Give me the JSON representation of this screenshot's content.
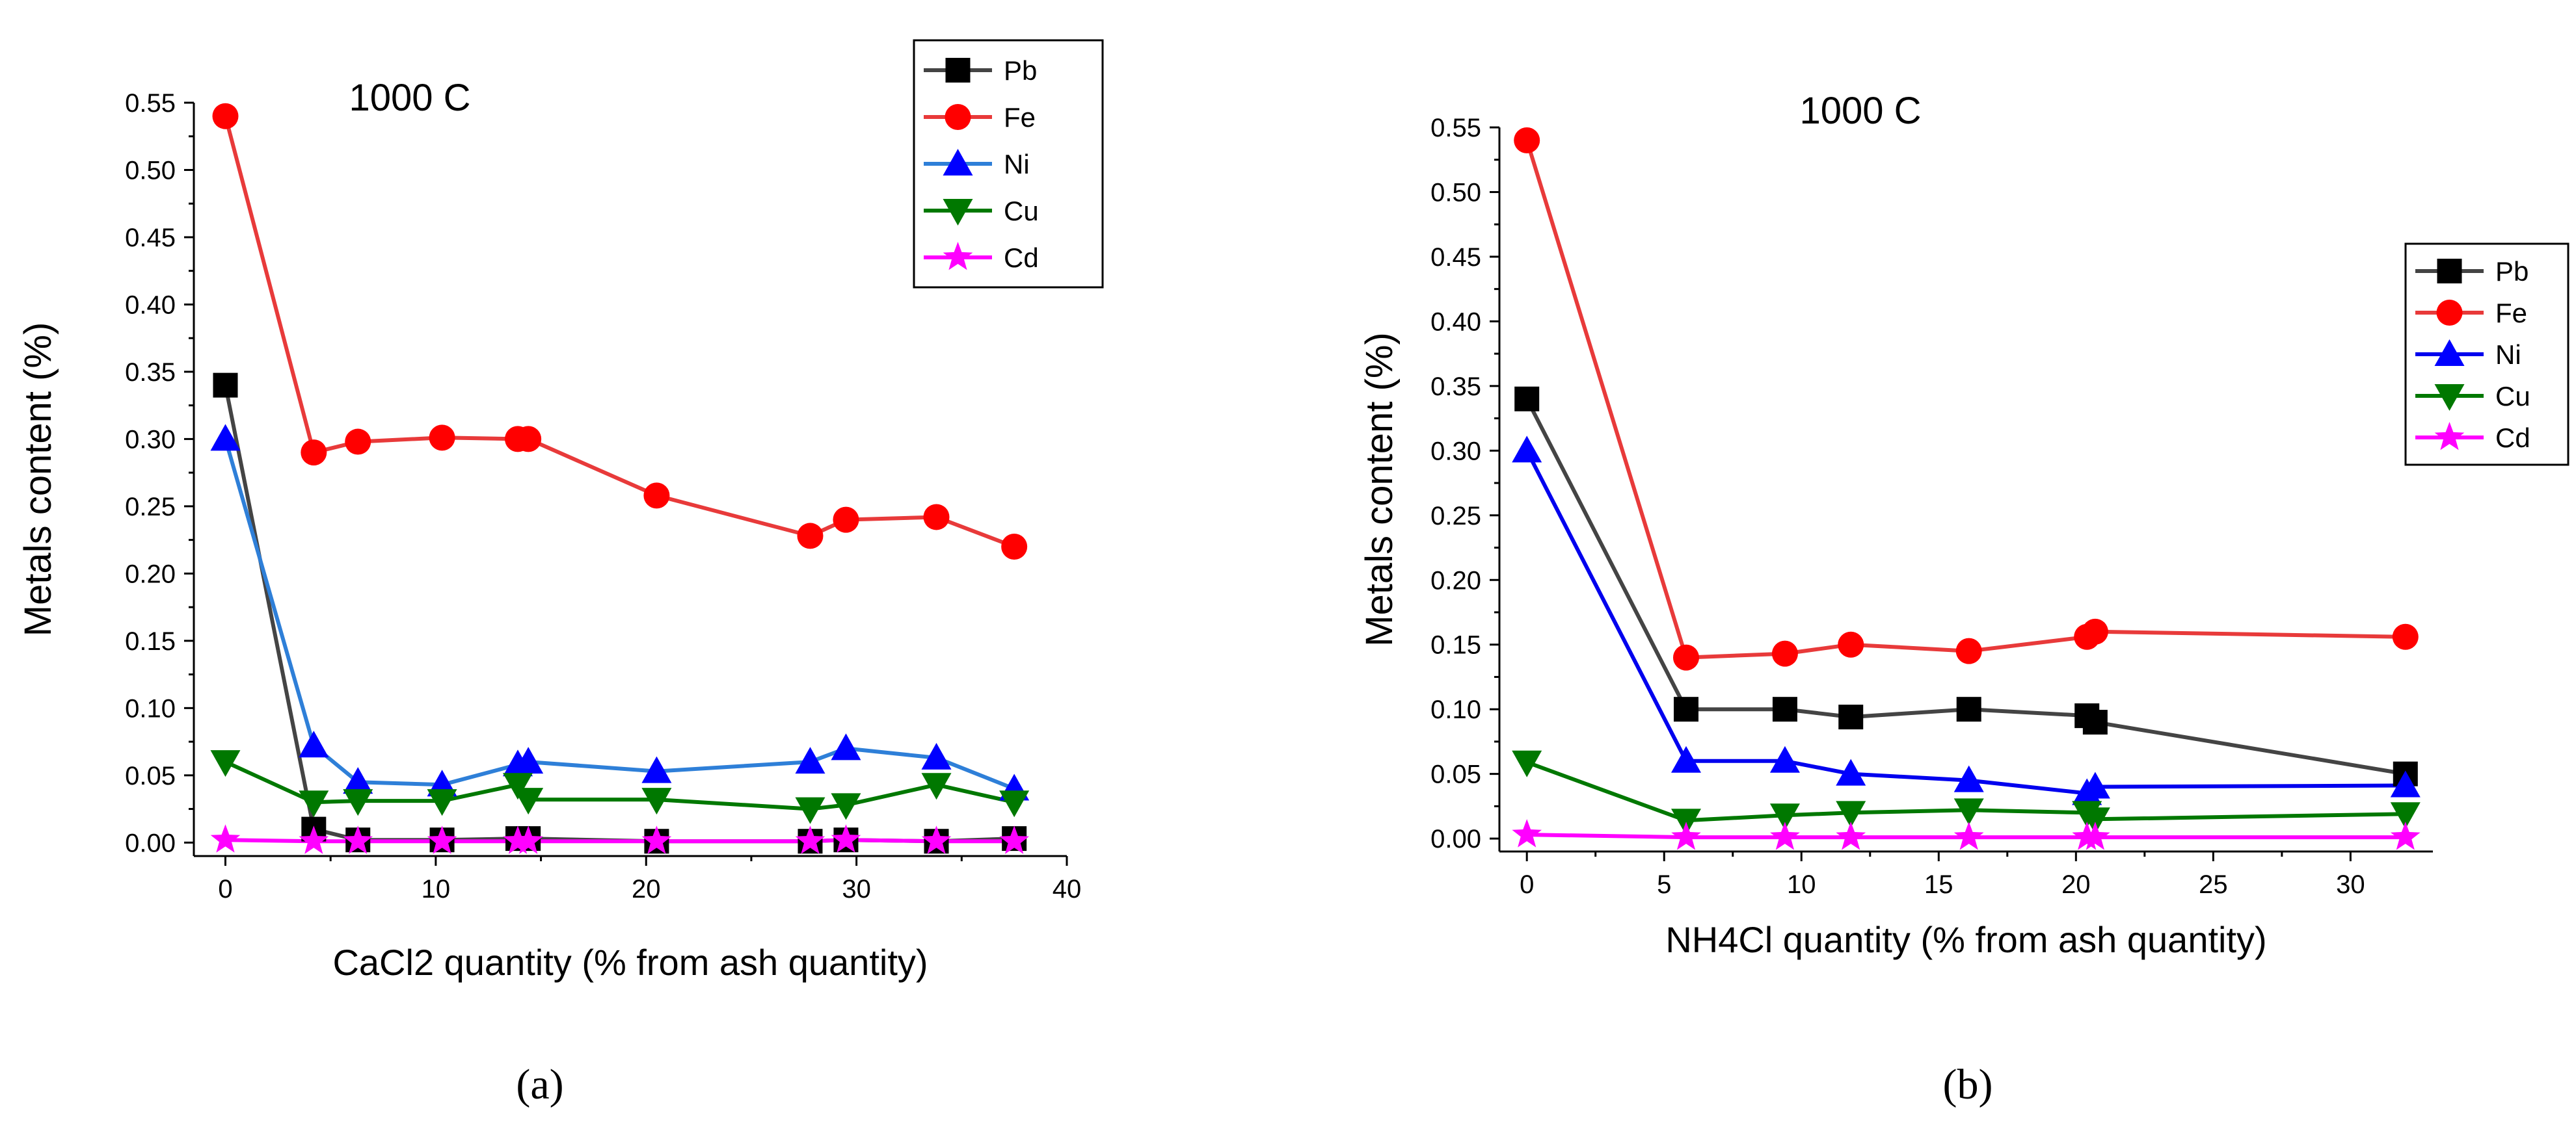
{
  "chart_data": [
    {
      "type": "line",
      "panel_label": "(a)",
      "title": "1000 C",
      "xlabel": "CaCl2 quantity (% from ash quantity)",
      "ylabel": "Metals content (%)",
      "xlim": [
        -1.5,
        40
      ],
      "ylim": [
        -0.01,
        0.55
      ],
      "xticks": [
        0,
        10,
        20,
        30,
        40
      ],
      "yticks": [
        0.0,
        0.05,
        0.1,
        0.15,
        0.2,
        0.25,
        0.3,
        0.35,
        0.4,
        0.45,
        0.5,
        0.55
      ],
      "legend_position": "top-right",
      "x": [
        0,
        4.2,
        6.3,
        10.3,
        13.9,
        14.4,
        20.5,
        27.8,
        29.5,
        33.8,
        37.5
      ],
      "series": [
        {
          "name": "Pb",
          "color": "#000000",
          "line_color": "#444444",
          "marker": "square",
          "values": [
            0.34,
            0.01,
            0.002,
            0.002,
            0.003,
            0.003,
            0.001,
            0.001,
            0.002,
            0.001,
            0.003
          ]
        },
        {
          "name": "Fe",
          "color": "#ff0000",
          "line_color": "#e83a3a",
          "marker": "circle",
          "values": [
            0.54,
            0.29,
            0.298,
            0.301,
            0.3,
            0.3,
            0.258,
            0.228,
            0.24,
            0.242,
            0.22
          ]
        },
        {
          "name": "Ni",
          "color": "#0000ff",
          "line_color": "#2e7fd8",
          "marker": "triangle-up",
          "values": [
            0.3,
            0.072,
            0.045,
            0.043,
            0.058,
            0.06,
            0.053,
            0.06,
            0.07,
            0.063,
            0.04
          ]
        },
        {
          "name": "Cu",
          "color": "#007800",
          "line_color": "#007800",
          "marker": "triangle-down",
          "values": [
            0.06,
            0.03,
            0.031,
            0.031,
            0.043,
            0.032,
            0.032,
            0.025,
            0.028,
            0.043,
            0.03
          ]
        },
        {
          "name": "Cd",
          "color": "#ff00ff",
          "line_color": "#ff00ff",
          "marker": "star",
          "values": [
            0.002,
            0.001,
            0.001,
            0.001,
            0.001,
            0.001,
            0.001,
            0.001,
            0.002,
            0.001,
            0.001
          ]
        }
      ]
    },
    {
      "type": "line",
      "panel_label": "(b)",
      "title": "1000 C",
      "xlabel": "NH4Cl quantity (% from ash quantity)",
      "ylabel": "Metals content (%)",
      "xlim": [
        -1,
        33
      ],
      "ylim": [
        -0.01,
        0.55
      ],
      "xticks": [
        0,
        5,
        10,
        15,
        20,
        25,
        30
      ],
      "yticks": [
        0.0,
        0.05,
        0.1,
        0.15,
        0.2,
        0.25,
        0.3,
        0.35,
        0.4,
        0.45,
        0.5,
        0.55
      ],
      "legend_position": "right",
      "x": [
        0,
        5.8,
        9.4,
        11.8,
        16.1,
        20.4,
        20.7,
        32
      ],
      "series": [
        {
          "name": "Pb",
          "color": "#000000",
          "line_color": "#444444",
          "marker": "square",
          "values": [
            0.34,
            0.1,
            0.1,
            0.094,
            0.1,
            0.095,
            0.09,
            0.05
          ]
        },
        {
          "name": "Fe",
          "color": "#ff0000",
          "line_color": "#e83a3a",
          "marker": "circle",
          "values": [
            0.54,
            0.14,
            0.143,
            0.15,
            0.145,
            0.156,
            0.16,
            0.156
          ]
        },
        {
          "name": "Ni",
          "color": "#0000ff",
          "line_color": "#0000ee",
          "marker": "triangle-up",
          "values": [
            0.3,
            0.06,
            0.06,
            0.05,
            0.045,
            0.035,
            0.04,
            0.041
          ]
        },
        {
          "name": "Cu",
          "color": "#007800",
          "line_color": "#007800",
          "marker": "triangle-down",
          "values": [
            0.059,
            0.014,
            0.018,
            0.02,
            0.022,
            0.02,
            0.015,
            0.019
          ]
        },
        {
          "name": "Cd",
          "color": "#ff00ff",
          "line_color": "#ff00ff",
          "marker": "star",
          "values": [
            0.003,
            0.001,
            0.001,
            0.001,
            0.001,
            0.001,
            0.001,
            0.001
          ]
        }
      ]
    }
  ]
}
